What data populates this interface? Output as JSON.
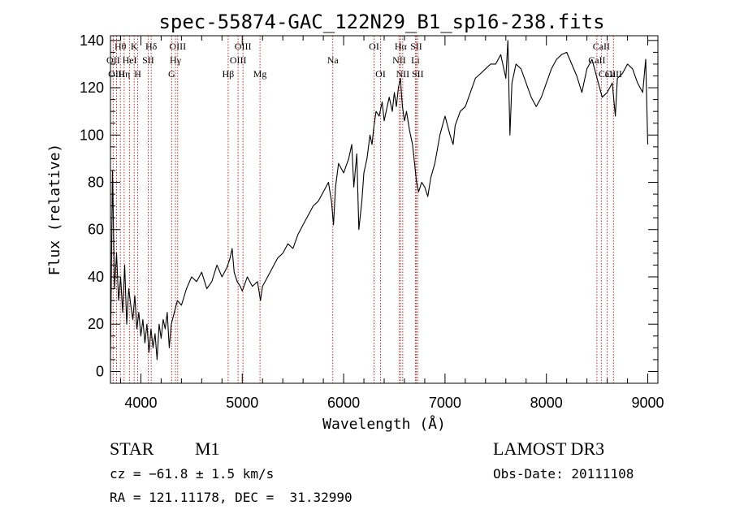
{
  "chart_data": {
    "type": "line",
    "title": "spec-55874-GAC_122N29_B1_sp16-238.fits",
    "xlabel": "Wavelength (Å)",
    "ylabel": "Flux (relative)",
    "xlim": [
      3700,
      9100
    ],
    "ylim": [
      -5,
      142
    ],
    "xticks": [
      4000,
      5000,
      6000,
      7000,
      8000,
      9000
    ],
    "yticks": [
      0,
      20,
      40,
      60,
      80,
      100,
      120,
      140
    ],
    "grid": false,
    "series": [
      {
        "name": "flux",
        "x": [
          3700,
          3720,
          3740,
          3760,
          3780,
          3800,
          3820,
          3840,
          3860,
          3880,
          3900,
          3920,
          3940,
          3960,
          3980,
          4000,
          4020,
          4040,
          4060,
          4080,
          4100,
          4120,
          4140,
          4160,
          4180,
          4200,
          4220,
          4240,
          4260,
          4280,
          4300,
          4330,
          4360,
          4400,
          4450,
          4500,
          4550,
          4600,
          4650,
          4700,
          4750,
          4800,
          4850,
          4880,
          4900,
          4920,
          4950,
          4980,
          5000,
          5050,
          5100,
          5150,
          5180,
          5200,
          5250,
          5300,
          5350,
          5400,
          5450,
          5500,
          5550,
          5600,
          5650,
          5700,
          5750,
          5800,
          5850,
          5880,
          5900,
          5920,
          5950,
          6000,
          6050,
          6080,
          6100,
          6130,
          6150,
          6180,
          6200,
          6230,
          6260,
          6280,
          6300,
          6320,
          6350,
          6380,
          6400,
          6430,
          6450,
          6480,
          6500,
          6520,
          6540,
          6560,
          6570,
          6580,
          6600,
          6620,
          6650,
          6680,
          6700,
          6720,
          6740,
          6770,
          6800,
          6830,
          6860,
          6900,
          6950,
          7000,
          7050,
          7080,
          7100,
          7150,
          7200,
          7250,
          7300,
          7350,
          7400,
          7450,
          7500,
          7550,
          7580,
          7600,
          7620,
          7640,
          7660,
          7700,
          7750,
          7800,
          7850,
          7900,
          7950,
          8000,
          8050,
          8100,
          8150,
          8200,
          8250,
          8300,
          8350,
          8400,
          8450,
          8500,
          8550,
          8600,
          8650,
          8680,
          8700,
          8750,
          8800,
          8850,
          8900,
          8950,
          8980,
          9000
        ],
        "y": [
          5,
          85,
          35,
          50,
          30,
          40,
          25,
          45,
          20,
          35,
          28,
          22,
          32,
          18,
          25,
          15,
          22,
          12,
          20,
          8,
          18,
          10,
          16,
          5,
          20,
          14,
          22,
          18,
          25,
          10,
          20,
          25,
          30,
          28,
          35,
          40,
          38,
          42,
          35,
          38,
          45,
          40,
          44,
          48,
          52,
          42,
          38,
          36,
          34,
          40,
          36,
          38,
          30,
          36,
          40,
          44,
          48,
          50,
          54,
          52,
          58,
          62,
          66,
          70,
          72,
          76,
          80,
          72,
          62,
          78,
          88,
          84,
          90,
          96,
          78,
          92,
          60,
          72,
          84,
          90,
          100,
          96,
          104,
          110,
          108,
          114,
          106,
          112,
          116,
          110,
          118,
          112,
          120,
          124,
          118,
          112,
          106,
          110,
          102,
          96,
          88,
          80,
          76,
          80,
          78,
          74,
          82,
          88,
          100,
          108,
          100,
          96,
          104,
          110,
          112,
          118,
          124,
          126,
          128,
          130,
          130,
          134,
          128,
          124,
          140,
          100,
          122,
          130,
          128,
          122,
          116,
          112,
          116,
          122,
          128,
          132,
          134,
          135,
          130,
          125,
          118,
          128,
          132,
          124,
          116,
          118,
          122,
          108,
          124,
          126,
          130,
          128,
          122,
          118,
          132,
          96
        ]
      }
    ],
    "lines": [
      {
        "label": "Hθ",
        "x": 3798,
        "row": 1
      },
      {
        "label": "OII",
        "x": 3727,
        "row": 2
      },
      {
        "label": "OIII",
        "x": 3760,
        "row": 3
      },
      {
        "label": "Hη",
        "x": 3835,
        "row": 3
      },
      {
        "label": "HeI",
        "x": 3889,
        "row": 2
      },
      {
        "label": "K",
        "x": 3934,
        "row": 1
      },
      {
        "label": "SII",
        "x": 4072,
        "row": 2
      },
      {
        "label": "H",
        "x": 3969,
        "row": 3
      },
      {
        "label": "Hδ",
        "x": 4102,
        "row": 1
      },
      {
        "label": "OIII",
        "x": 4363,
        "row": 1
      },
      {
        "label": "Hγ",
        "x": 4341,
        "row": 2
      },
      {
        "label": "G",
        "x": 4304,
        "row": 3
      },
      {
        "label": "Hβ",
        "x": 4861,
        "row": 3
      },
      {
        "label": "OIII",
        "x": 5007,
        "row": 1
      },
      {
        "label": "OIII",
        "x": 4959,
        "row": 2
      },
      {
        "label": "Mg",
        "x": 5175,
        "row": 3
      },
      {
        "label": "Na",
        "x": 5893,
        "row": 2
      },
      {
        "label": "OI",
        "x": 6300,
        "row": 1
      },
      {
        "label": "OI",
        "x": 6364,
        "row": 3
      },
      {
        "label": "Hα",
        "x": 6563,
        "row": 1
      },
      {
        "label": "NII",
        "x": 6548,
        "row": 2
      },
      {
        "label": "NII",
        "x": 6583,
        "row": 3
      },
      {
        "label": "SII",
        "x": 6716,
        "row": 1
      },
      {
        "label": "Li",
        "x": 6708,
        "row": 2
      },
      {
        "label": "SII",
        "x": 6731,
        "row": 3
      },
      {
        "label": "CaII",
        "x": 8542,
        "row": 1
      },
      {
        "label": "CaII",
        "x": 8498,
        "row": 2
      },
      {
        "label": "CaII",
        "x": 8662,
        "row": 3
      },
      {
        "label": "CaII",
        "x": 8600,
        "row": 3
      }
    ]
  },
  "info": {
    "object_class": "STAR",
    "subclass": "M1",
    "survey": "LAMOST DR3",
    "cz": "cz = −61.8 ± 1.5 km/s",
    "obs_date": "Obs-Date: 20111108",
    "coords": "RA = 121.11178, DEC =  31.32990"
  }
}
